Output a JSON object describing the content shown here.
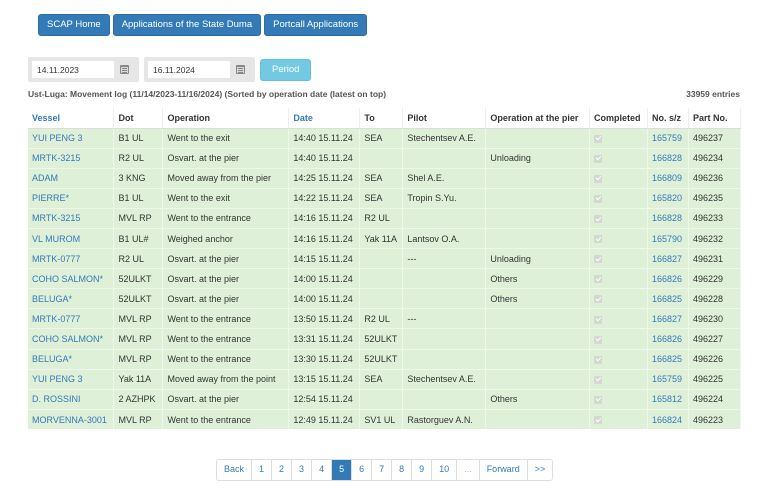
{
  "nav": {
    "buttons": [
      "SCAP Home",
      "Applications of the State Duma",
      "Portcall Applications"
    ]
  },
  "filters": {
    "date_from": "14.11.2023",
    "date_to": "16.11.2024",
    "period_label": "Period"
  },
  "caption": "Ust-Luga: Movement log (11/14/2023-11/16/2024) (Sorted by operation date (latest on top)",
  "entries": "33959 entries",
  "colors": {
    "accent": "#337ab7",
    "row_bg": "#dff0d8",
    "period_btn": "#5bc0de"
  },
  "table": {
    "headers": [
      "Vessel",
      "Dot",
      "Operation",
      "Date",
      "To",
      "Pilot",
      "Operation at the pier",
      "Completed",
      "No. s/z",
      "Part No."
    ],
    "rows": [
      [
        "YUI PENG 3",
        "B1 UL",
        "Went to the exit",
        "14:40 15.11.24",
        "SEA",
        "Stechentsev A.E.",
        "",
        "checked",
        "165759",
        "496237"
      ],
      [
        "MRTK-3215",
        "R2 UL",
        "Osvart. at the pier",
        "14:40 15.11.24",
        "",
        "",
        "Unloading",
        "checked",
        "166828",
        "496234"
      ],
      [
        "ADAM",
        "3 KNG",
        "Moved away from the pier",
        "14:25 15.11.24",
        "SEA",
        "Shel A.E.",
        "",
        "checked",
        "166809",
        "496236"
      ],
      [
        "PIERRE*",
        "B1 UL",
        "Went to the exit",
        "14:22 15.11.24",
        "SEA",
        "Tropin S.Yu.",
        "",
        "checked",
        "165820",
        "496235"
      ],
      [
        "MRTK-3215",
        "MVL RP",
        "Went to the entrance",
        "14:16 15.11.24",
        "R2 UL",
        "",
        "",
        "checked",
        "166828",
        "496233"
      ],
      [
        "VL MUROM",
        "B1 UL#",
        "Weighed anchor",
        "14:16 15.11.24",
        "Yak 11A",
        "Lantsov O.A.",
        "",
        "checked",
        "165790",
        "496232"
      ],
      [
        "MRTK-0777",
        "R2 UL",
        "Osvart. at the pier",
        "14:15 15.11.24",
        "",
        "---",
        "Unloading",
        "checked",
        "166827",
        "496231"
      ],
      [
        "COHO SALMON*",
        "52ULKT",
        "Osvart. at the pier",
        "14:00 15.11.24",
        "",
        "",
        "Others",
        "checked",
        "166826",
        "496229"
      ],
      [
        "BELUGA*",
        "52ULKT",
        "Osvart. at the pier",
        "14:00 15.11.24",
        "",
        "",
        "Others",
        "checked",
        "166825",
        "496228"
      ],
      [
        "MRTK-0777",
        "MVL RP",
        "Went to the entrance",
        "13:50 15.11.24",
        "R2 UL",
        "---",
        "",
        "checked",
        "166827",
        "496230"
      ],
      [
        "COHO SALMON*",
        "MVL RP",
        "Went to the entrance",
        "13:31 15.11.24",
        "52ULKT",
        "",
        "",
        "checked",
        "166826",
        "496227"
      ],
      [
        "BELUGA*",
        "MVL RP",
        "Went to the entrance",
        "13:30 15.11.24",
        "52ULKT",
        "",
        "",
        "checked",
        "166825",
        "496226"
      ],
      [
        "YUI PENG 3",
        "Yak 11A",
        "Moved away from the point",
        "13:15 15.11.24",
        "SEA",
        "Stechentsev A.E.",
        "",
        "checked",
        "165759",
        "496225"
      ],
      [
        "D. ROSSINI",
        "2 AZHPK",
        "Osvart. at the pier",
        "12:54 15.11.24",
        "",
        "",
        "Others",
        "checked",
        "165812",
        "496224"
      ],
      [
        "MORVENNA-3001",
        "MVL RP",
        "Went to the entrance",
        "12:49 15.11.24",
        "SV1 UL",
        "Rastorguev A.N.",
        "",
        "checked",
        "166824",
        "496223"
      ]
    ]
  },
  "pagination": {
    "items": [
      "Back",
      "1",
      "2",
      "3",
      "4",
      "5",
      "6",
      "7",
      "8",
      "9",
      "10",
      "...",
      "Forward",
      ">>"
    ],
    "active": "5"
  }
}
